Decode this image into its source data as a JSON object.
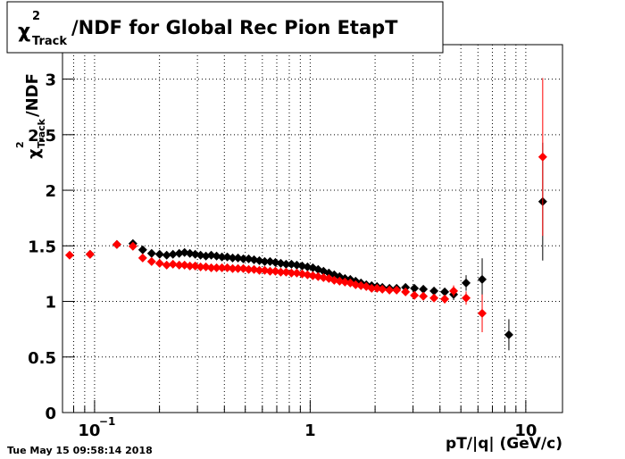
{
  "chart_data": {
    "type": "scatter",
    "title": {
      "symbol": "χ",
      "sup": "2",
      "sub": "Track",
      "rest": "/NDF for Global Rec Pion EtapT"
    },
    "y_label": {
      "symbol": "χ",
      "sup": "2",
      "sub": "Track",
      "rest": "/NDF"
    },
    "x_label": "pT/|q| (GeV/c)",
    "timestamp": "Tue May 15 09:58:14 2018",
    "xlog": true,
    "grid": true,
    "xlim": [
      0.071,
      14.8
    ],
    "ylim": [
      0,
      3.31
    ],
    "xticks": [
      {
        "value": 0.1,
        "label": "10",
        "exponent": "−1"
      },
      1,
      10
    ],
    "xminor": [
      0.08,
      0.09,
      0.2,
      0.3,
      0.4,
      0.5,
      0.6,
      0.7,
      0.8,
      0.9,
      2,
      3,
      4,
      5,
      6,
      7,
      8,
      9
    ],
    "yticks": [
      0,
      0.5,
      1,
      1.5,
      2,
      2.5,
      3
    ],
    "series": [
      {
        "color": "#000000",
        "x": [
          0.0953,
          0.1269,
          0.1506,
          0.1672,
          0.1839,
          0.2003,
          0.2161,
          0.231,
          0.2469,
          0.2615,
          0.2768,
          0.293,
          0.3102,
          0.3284,
          0.3477,
          0.3681,
          0.3898,
          0.4127,
          0.4369,
          0.4626,
          0.4898,
          0.5186,
          0.5491,
          0.5813,
          0.6155,
          0.6516,
          0.6899,
          0.7305,
          0.7734,
          0.8188,
          0.867,
          0.918,
          0.9719,
          1.029,
          1.089,
          1.153,
          1.221,
          1.293,
          1.369,
          1.45,
          1.535,
          1.625,
          1.72,
          1.821,
          1.928,
          2.042,
          2.161,
          2.332,
          2.517,
          2.768,
          3.044,
          3.348,
          3.753,
          4.207,
          4.627,
          5.286,
          6.276,
          8.348,
          11.98
        ],
        "values": [
          1.424,
          1.512,
          1.52,
          1.464,
          1.432,
          1.424,
          1.416,
          1.424,
          1.432,
          1.44,
          1.432,
          1.424,
          1.416,
          1.408,
          1.416,
          1.408,
          1.4,
          1.4,
          1.391,
          1.391,
          1.383,
          1.383,
          1.375,
          1.367,
          1.359,
          1.359,
          1.351,
          1.343,
          1.335,
          1.335,
          1.327,
          1.319,
          1.311,
          1.303,
          1.287,
          1.271,
          1.255,
          1.239,
          1.223,
          1.206,
          1.198,
          1.182,
          1.166,
          1.15,
          1.142,
          1.134,
          1.126,
          1.118,
          1.118,
          1.126,
          1.118,
          1.11,
          1.094,
          1.086,
          1.062,
          1.166,
          1.198,
          0.7,
          1.898
        ],
        "yerr": [
          0.01,
          0.01,
          0.01,
          0.01,
          0.01,
          0.01,
          0.01,
          0.01,
          0.01,
          0.01,
          0.01,
          0.01,
          0.01,
          0.01,
          0.01,
          0.01,
          0.01,
          0.01,
          0.01,
          0.01,
          0.01,
          0.01,
          0.01,
          0.01,
          0.01,
          0.01,
          0.01,
          0.01,
          0.01,
          0.01,
          0.01,
          0.01,
          0.01,
          0.01,
          0.01,
          0.01,
          0.01,
          0.01,
          0.01,
          0.01,
          0.01,
          0.01,
          0.01,
          0.01,
          0.01,
          0.01,
          0.01,
          0.01,
          0.01,
          0.01,
          0.01,
          0.01,
          0.01,
          0.03,
          0.05,
          0.07,
          0.19,
          0.14,
          0.53
        ]
      },
      {
        "color": "#ff0000",
        "x": [
          0.0766,
          0.0953,
          0.1269,
          0.1506,
          0.1672,
          0.1839,
          0.2003,
          0.2161,
          0.231,
          0.2469,
          0.2615,
          0.2768,
          0.293,
          0.3102,
          0.3284,
          0.3477,
          0.3681,
          0.3898,
          0.4127,
          0.4369,
          0.4626,
          0.4898,
          0.5186,
          0.5491,
          0.5813,
          0.6155,
          0.6516,
          0.6899,
          0.7305,
          0.7734,
          0.8188,
          0.867,
          0.918,
          0.9719,
          1.029,
          1.089,
          1.153,
          1.221,
          1.293,
          1.369,
          1.45,
          1.535,
          1.625,
          1.72,
          1.821,
          1.928,
          2.042,
          2.161,
          2.332,
          2.517,
          2.768,
          3.044,
          3.348,
          3.753,
          4.207,
          4.627,
          5.286,
          6.276,
          11.98
        ],
        "values": [
          1.416,
          1.424,
          1.512,
          1.496,
          1.391,
          1.359,
          1.343,
          1.327,
          1.335,
          1.327,
          1.327,
          1.319,
          1.319,
          1.311,
          1.311,
          1.303,
          1.303,
          1.303,
          1.303,
          1.295,
          1.295,
          1.295,
          1.287,
          1.287,
          1.279,
          1.279,
          1.271,
          1.271,
          1.263,
          1.263,
          1.255,
          1.255,
          1.247,
          1.239,
          1.231,
          1.223,
          1.214,
          1.206,
          1.19,
          1.182,
          1.174,
          1.166,
          1.15,
          1.142,
          1.134,
          1.118,
          1.118,
          1.11,
          1.102,
          1.102,
          1.086,
          1.054,
          1.046,
          1.03,
          1.021,
          1.094,
          1.03,
          0.893,
          2.3
        ],
        "yerr": [
          0.01,
          0.01,
          0.01,
          0.01,
          0.01,
          0.01,
          0.01,
          0.01,
          0.01,
          0.01,
          0.01,
          0.01,
          0.01,
          0.01,
          0.01,
          0.01,
          0.01,
          0.01,
          0.01,
          0.01,
          0.01,
          0.01,
          0.01,
          0.01,
          0.01,
          0.01,
          0.01,
          0.01,
          0.01,
          0.01,
          0.01,
          0.01,
          0.01,
          0.01,
          0.01,
          0.01,
          0.01,
          0.01,
          0.01,
          0.01,
          0.01,
          0.01,
          0.01,
          0.01,
          0.01,
          0.01,
          0.01,
          0.01,
          0.01,
          0.01,
          0.01,
          0.01,
          0.01,
          0.01,
          0.04,
          0.05,
          0.06,
          0.17,
          0.71
        ]
      }
    ]
  }
}
